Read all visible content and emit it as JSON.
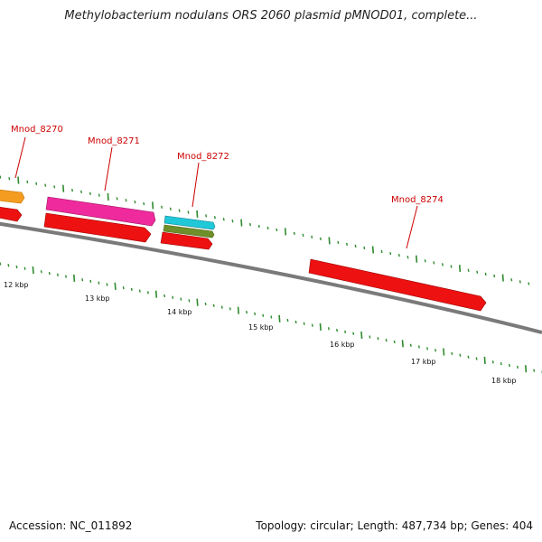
{
  "title": "Methylobacterium nodulans ORS 2060 plasmid pMNOD01, complete...",
  "footer": {
    "accession": "Accession: NC_011892",
    "summary": "Topology: circular; Length: 487,734 bp; Genes: 404"
  },
  "colors": {
    "backbone": "#7a7a7a",
    "tick": "#2e8b2e",
    "label": "#cc0000",
    "gene_red": "#ee1111",
    "gene_orange": "#f39c1f",
    "gene_magenta": "#ee2a9c",
    "gene_cyan": "#20c8d8",
    "gene_olive": "#6f8f2a"
  },
  "gene_labels": [
    {
      "id": "l8270",
      "text": "Mnod_8270"
    },
    {
      "id": "l8271",
      "text": "Mnod_8271"
    },
    {
      "id": "l8272",
      "text": "Mnod_8272"
    },
    {
      "id": "l8274",
      "text": "Mnod_8274"
    }
  ],
  "scale_labels": [
    "12 kbp",
    "13 kbp",
    "14 kbp",
    "15 kbp",
    "16 kbp",
    "17 kbp",
    "18 kbp"
  ]
}
